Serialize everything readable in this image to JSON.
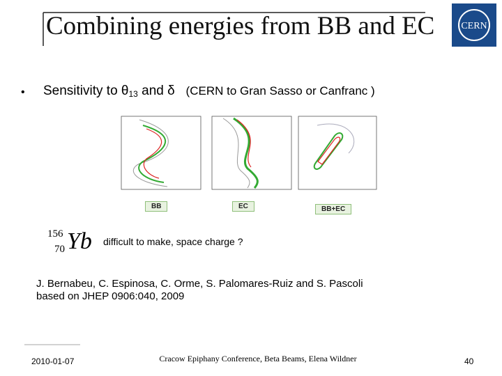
{
  "header": {
    "title": "Combining energies from BB and EC",
    "logo_text": "CERN"
  },
  "bullet": {
    "marker": "•",
    "text": "Sensitivity to θ",
    "subscript": "13",
    "text_after": " and δ",
    "context": "(CERN to Gran Sasso or Canfranc )"
  },
  "figures": [
    {
      "label": "BB"
    },
    {
      "label": "EC"
    },
    {
      "label": "BB+EC"
    }
  ],
  "isotope": {
    "mass_number": "156",
    "atomic_number": "70",
    "symbol": "Yb"
  },
  "note": "difficult to make, space charge ?",
  "references": [
    "J. Bernabeu,  C. Espinosa, C. Orme,  S. Palomares-Ruiz and S. Pascoli",
    "based on JHEP 0906:040, 2009"
  ],
  "footer": {
    "date": "2010-01-07",
    "center": "Cracow Epiphany Conference, Beta Beams, Elena Wildner",
    "page": "40"
  }
}
